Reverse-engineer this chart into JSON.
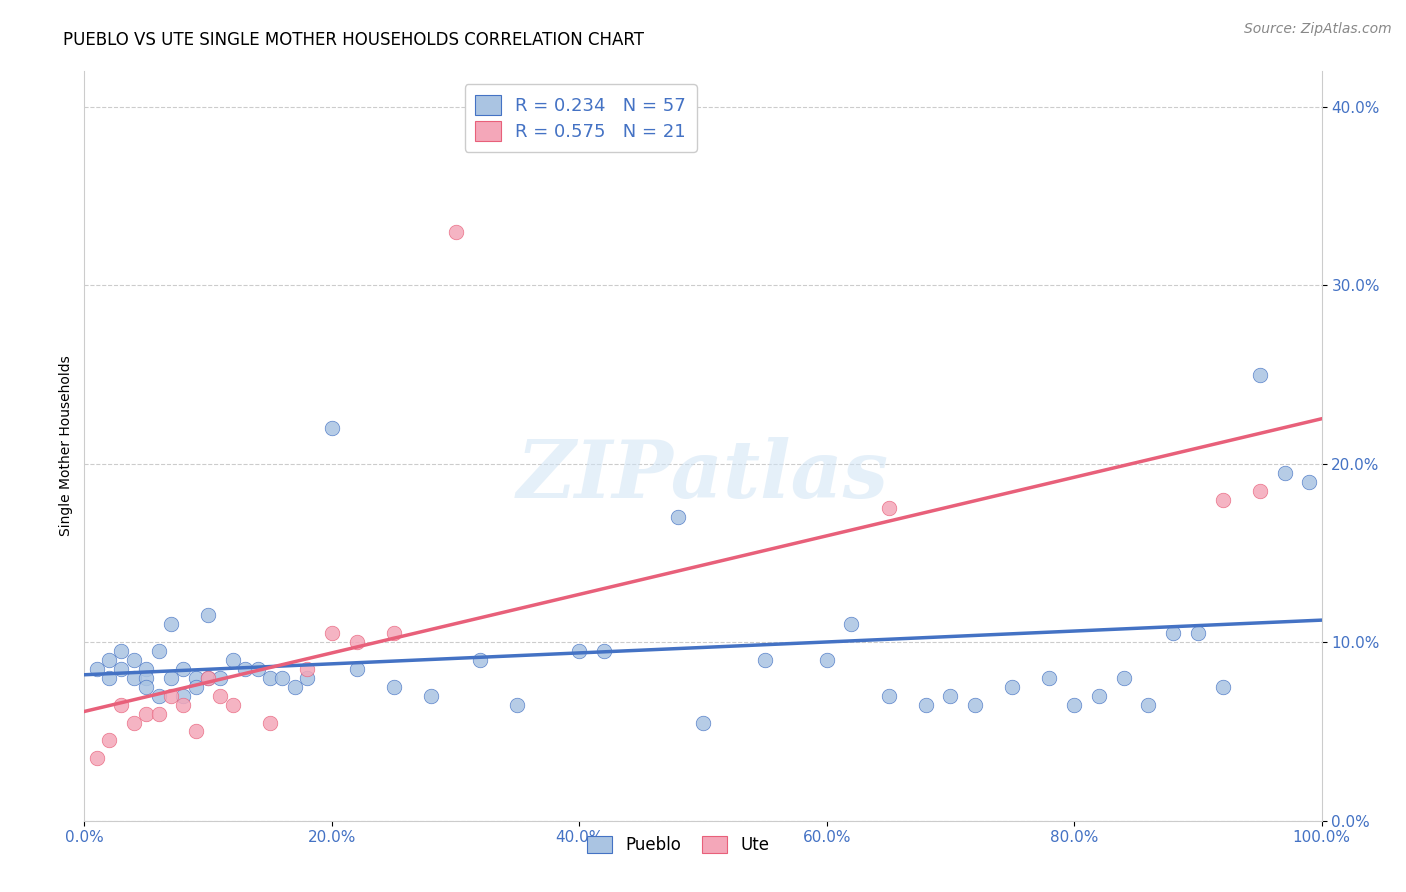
{
  "title": "PUEBLO VS UTE SINGLE MOTHER HOUSEHOLDS CORRELATION CHART",
  "source": "Source: ZipAtlas.com",
  "ylabel": "Single Mother Households",
  "pueblo_R": 0.234,
  "pueblo_N": 57,
  "ute_R": 0.575,
  "ute_N": 21,
  "pueblo_color": "#aac4e2",
  "pueblo_line_color": "#4472c4",
  "ute_color": "#f4a7b9",
  "ute_line_color": "#e8607a",
  "watermark_text": "ZIPatlas",
  "pueblo_x": [
    1,
    2,
    2,
    3,
    3,
    4,
    4,
    5,
    5,
    5,
    6,
    6,
    7,
    7,
    8,
    8,
    9,
    9,
    10,
    10,
    11,
    12,
    13,
    14,
    15,
    16,
    17,
    18,
    20,
    22,
    25,
    28,
    32,
    35,
    40,
    42,
    48,
    50,
    55,
    60,
    62,
    65,
    68,
    70,
    72,
    75,
    78,
    80,
    82,
    84,
    86,
    88,
    90,
    92,
    95,
    97,
    99
  ],
  "pueblo_y": [
    8.5,
    9.0,
    8.0,
    9.5,
    8.5,
    8.0,
    9.0,
    8.5,
    8.0,
    7.5,
    9.5,
    7.0,
    11.0,
    8.0,
    7.0,
    8.5,
    8.0,
    7.5,
    8.0,
    11.5,
    8.0,
    9.0,
    8.5,
    8.5,
    8.0,
    8.0,
    7.5,
    8.0,
    22.0,
    8.5,
    7.5,
    7.0,
    9.0,
    6.5,
    9.5,
    9.5,
    17.0,
    5.5,
    9.0,
    9.0,
    11.0,
    7.0,
    6.5,
    7.0,
    6.5,
    7.5,
    8.0,
    6.5,
    7.0,
    8.0,
    6.5,
    10.5,
    10.5,
    7.5,
    25.0,
    19.5,
    19.0
  ],
  "ute_x": [
    1,
    2,
    3,
    4,
    5,
    6,
    7,
    8,
    9,
    10,
    11,
    12,
    15,
    18,
    20,
    22,
    25,
    30,
    65,
    92,
    95
  ],
  "ute_y": [
    3.5,
    4.5,
    6.5,
    5.5,
    6.0,
    6.0,
    7.0,
    6.5,
    5.0,
    8.0,
    7.0,
    6.5,
    5.5,
    8.5,
    10.5,
    10.0,
    10.5,
    33.0,
    17.5,
    18.0,
    18.5
  ],
  "xlim": [
    0,
    100
  ],
  "ylim": [
    0,
    42
  ],
  "xticks": [
    0,
    20,
    40,
    60,
    80,
    100
  ],
  "yticks": [
    0,
    10,
    20,
    30,
    40
  ],
  "tick_color": "#4472c4",
  "tick_fontsize": 11,
  "title_fontsize": 12,
  "source_fontsize": 10,
  "legend_fontsize": 13
}
